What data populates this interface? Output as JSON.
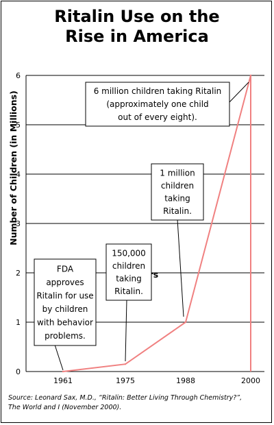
{
  "header": {
    "title_line1": "Ritalin Use on the",
    "title_line2": "Rise in America"
  },
  "source": {
    "line1": "Source: Leonard Sax, M.D., “Ritalin: Better Living Through Chemistry?”,",
    "line2": "The World and I (November 2000)."
  },
  "chart_data": {
    "type": "line",
    "title": "Ritalin Use on the Rise in America",
    "xlabel": "Years",
    "ylabel": "Number of Children (in Millions)",
    "categories": [
      "1961",
      "1975",
      "1988",
      "2000"
    ],
    "values": [
      0,
      0.15,
      1,
      6
    ],
    "ylim": [
      0,
      6
    ],
    "yticks": [
      "0",
      "1",
      "2",
      "3",
      "4",
      "5",
      "6"
    ],
    "grid": true,
    "line_color": "#f08080",
    "annotations": [
      {
        "point": 0,
        "lines": [
          "FDA",
          "approves",
          "Ritalin for use",
          "by children",
          "with behavior",
          "problems."
        ]
      },
      {
        "point": 1,
        "lines": [
          "150,000",
          "children",
          "taking",
          "Ritalin."
        ]
      },
      {
        "point": 2,
        "lines": [
          "1 million",
          "children",
          "taking",
          "Ritalin."
        ]
      },
      {
        "point": 3,
        "lines": [
          "6 million children taking Ritalin",
          "(approximately one child",
          "out of every eight)."
        ]
      }
    ]
  }
}
